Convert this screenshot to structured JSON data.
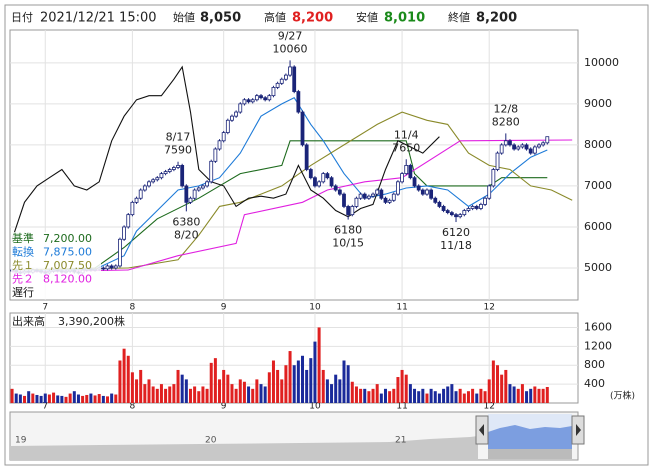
{
  "header": {
    "date_label": "日付",
    "date": "2021/12/21 15:00",
    "open_label": "始値",
    "open": "8,050",
    "high_label": "高値",
    "high": "8,200",
    "low_label": "安値",
    "low": "8,010",
    "close_label": "終値",
    "close": "8,200"
  },
  "chart_data": {
    "type": "candlestick",
    "up_color": "#ffffff",
    "down_color": "#1a2478",
    "edge_color": "#1a2478",
    "xlim": [
      -0.5,
      136.4
    ],
    "ylim": [
      4220,
      10800
    ],
    "yticks": [
      5000,
      6000,
      7000,
      8000,
      9000,
      10000
    ],
    "grid": true,
    "xticks": [
      {
        "value": 8,
        "label": "7"
      },
      {
        "value": 29,
        "label": "8"
      },
      {
        "value": 51,
        "label": "9"
      },
      {
        "value": 73,
        "label": "10"
      },
      {
        "value": 94,
        "label": "11"
      },
      {
        "value": 115,
        "label": "12"
      }
    ],
    "ohlc": [
      [
        4950,
        4990,
        4910,
        4950
      ],
      [
        4950,
        4990,
        4860,
        4900
      ],
      [
        4900,
        4940,
        4840,
        4880
      ],
      [
        4880,
        4960,
        4840,
        4920
      ],
      [
        4920,
        4960,
        4860,
        4900
      ],
      [
        4900,
        4990,
        4860,
        4950
      ],
      [
        4950,
        4990,
        4890,
        4930
      ],
      [
        4930,
        4970,
        4860,
        4900
      ],
      [
        4900,
        4940,
        4840,
        4880
      ],
      [
        4880,
        4960,
        4840,
        4920
      ],
      [
        4920,
        4990,
        4880,
        4950
      ],
      [
        4950,
        4990,
        4890,
        4930
      ],
      [
        4930,
        4970,
        4860,
        4900
      ],
      [
        4900,
        4960,
        4860,
        4920
      ],
      [
        4920,
        4990,
        4880,
        4950
      ],
      [
        4950,
        4990,
        4860,
        4900
      ],
      [
        4900,
        4940,
        4840,
        4880
      ],
      [
        4880,
        4990,
        4840,
        4950
      ],
      [
        4950,
        5020,
        4910,
        4980
      ],
      [
        4980,
        5020,
        4910,
        4950
      ],
      [
        4950,
        5010,
        4910,
        4970
      ],
      [
        4970,
        5040,
        4930,
        5000
      ],
      [
        5000,
        5040,
        4940,
        4980
      ],
      [
        4980,
        5090,
        4940,
        5050
      ],
      [
        5050,
        5090,
        4960,
        5000
      ],
      [
        5000,
        5090,
        4960,
        5050
      ],
      [
        5050,
        5740,
        5010,
        5700
      ],
      [
        5700,
        6040,
        5660,
        6000
      ],
      [
        6000,
        6340,
        5960,
        6300
      ],
      [
        6300,
        6640,
        6260,
        6600
      ],
      [
        6600,
        6740,
        6560,
        6700
      ],
      [
        6700,
        6940,
        6660,
        6900
      ],
      [
        6900,
        7040,
        6860,
        7000
      ],
      [
        7000,
        7140,
        6960,
        7100
      ],
      [
        7100,
        7190,
        7060,
        7150
      ],
      [
        7150,
        7240,
        7110,
        7200
      ],
      [
        7200,
        7340,
        7160,
        7300
      ],
      [
        7300,
        7390,
        7260,
        7350
      ],
      [
        7350,
        7440,
        7310,
        7400
      ],
      [
        7400,
        7490,
        7360,
        7450
      ],
      [
        7450,
        7590,
        7410,
        7500
      ],
      [
        7500,
        7540,
        6960,
        7000
      ],
      [
        7000,
        7040,
        6380,
        6600
      ],
      [
        6600,
        6740,
        6560,
        6700
      ],
      [
        6700,
        6940,
        6660,
        6900
      ],
      [
        6900,
        6990,
        6860,
        6950
      ],
      [
        6950,
        7040,
        6910,
        7000
      ],
      [
        7000,
        7140,
        6960,
        7100
      ],
      [
        7100,
        7640,
        7060,
        7600
      ],
      [
        7600,
        7940,
        7560,
        7900
      ],
      [
        7900,
        8140,
        7860,
        8100
      ],
      [
        8100,
        8340,
        8060,
        8300
      ],
      [
        8300,
        8640,
        8260,
        8600
      ],
      [
        8600,
        8740,
        8560,
        8700
      ],
      [
        8700,
        8840,
        8660,
        8800
      ],
      [
        8800,
        9040,
        8760,
        9000
      ],
      [
        9000,
        9140,
        8960,
        9100
      ],
      [
        9100,
        9140,
        9010,
        9050
      ],
      [
        9050,
        9140,
        9010,
        9100
      ],
      [
        9100,
        9240,
        9060,
        9200
      ],
      [
        9200,
        9240,
        9110,
        9150
      ],
      [
        9150,
        9190,
        9060,
        9100
      ],
      [
        9100,
        9240,
        9060,
        9200
      ],
      [
        9200,
        9440,
        9160,
        9400
      ],
      [
        9400,
        9540,
        9360,
        9500
      ],
      [
        9500,
        9640,
        9460,
        9600
      ],
      [
        9600,
        9740,
        9560,
        9700
      ],
      [
        9700,
        10060,
        9660,
        9900
      ],
      [
        9900,
        9940,
        9260,
        9300
      ],
      [
        9300,
        9340,
        8760,
        8800
      ],
      [
        8800,
        8840,
        7960,
        8000
      ],
      [
        8000,
        8040,
        7360,
        7400
      ],
      [
        7400,
        7440,
        7160,
        7200
      ],
      [
        7200,
        7240,
        6960,
        7000
      ],
      [
        7000,
        7140,
        6960,
        7100
      ],
      [
        7100,
        7340,
        7060,
        7300
      ],
      [
        7300,
        7340,
        7160,
        7200
      ],
      [
        7200,
        7240,
        6960,
        7000
      ],
      [
        7000,
        7040,
        6860,
        6900
      ],
      [
        6900,
        6940,
        6760,
        6800
      ],
      [
        6800,
        6840,
        6460,
        6500
      ],
      [
        6500,
        6540,
        6180,
        6300
      ],
      [
        6300,
        6540,
        6260,
        6500
      ],
      [
        6500,
        6740,
        6460,
        6700
      ],
      [
        6700,
        6840,
        6660,
        6800
      ],
      [
        6800,
        6840,
        6660,
        6700
      ],
      [
        6700,
        6790,
        6660,
        6750
      ],
      [
        6750,
        6840,
        6710,
        6800
      ],
      [
        6800,
        6940,
        6760,
        6900
      ],
      [
        6900,
        6940,
        6660,
        6700
      ],
      [
        6700,
        6740,
        6560,
        6600
      ],
      [
        6600,
        6690,
        6560,
        6650
      ],
      [
        6650,
        6840,
        6610,
        6800
      ],
      [
        6800,
        7140,
        6760,
        7100
      ],
      [
        7100,
        7340,
        7060,
        7300
      ],
      [
        7300,
        7650,
        7260,
        7500
      ],
      [
        7500,
        7540,
        7160,
        7200
      ],
      [
        7200,
        7240,
        6960,
        7000
      ],
      [
        7000,
        7040,
        6860,
        6900
      ],
      [
        6900,
        6940,
        6760,
        6800
      ],
      [
        6800,
        6940,
        6760,
        6900
      ],
      [
        6900,
        6940,
        6660,
        6700
      ],
      [
        6700,
        6740,
        6560,
        6600
      ],
      [
        6600,
        6640,
        6460,
        6500
      ],
      [
        6500,
        6540,
        6360,
        6400
      ],
      [
        6400,
        6440,
        6310,
        6350
      ],
      [
        6350,
        6390,
        6260,
        6300
      ],
      [
        6300,
        6340,
        6120,
        6250
      ],
      [
        6250,
        6340,
        6210,
        6300
      ],
      [
        6300,
        6440,
        6260,
        6400
      ],
      [
        6400,
        6490,
        6360,
        6450
      ],
      [
        6450,
        6540,
        6410,
        6500
      ],
      [
        6500,
        6540,
        6410,
        6450
      ],
      [
        6450,
        6590,
        6410,
        6550
      ],
      [
        6550,
        6740,
        6510,
        6700
      ],
      [
        6700,
        7040,
        6660,
        7000
      ],
      [
        7000,
        7440,
        6960,
        7400
      ],
      [
        7400,
        7840,
        7360,
        7800
      ],
      [
        7800,
        8040,
        7760,
        8000
      ],
      [
        8000,
        8280,
        7960,
        8100
      ],
      [
        8100,
        8140,
        7960,
        8000
      ],
      [
        8000,
        8040,
        7860,
        7900
      ],
      [
        7900,
        7990,
        7860,
        7950
      ],
      [
        7950,
        8040,
        7910,
        8000
      ],
      [
        8000,
        8040,
        7860,
        7900
      ],
      [
        7900,
        7940,
        7760,
        7800
      ],
      [
        7800,
        7990,
        7760,
        7950
      ],
      [
        7950,
        8040,
        7910,
        8000
      ],
      [
        8000,
        8090,
        7960,
        8050
      ],
      [
        8050,
        8200,
        8010,
        8200
      ]
    ],
    "lines": [
      {
        "name": "基準",
        "color": "#1e6b1e",
        "legend_value": {
          "value": 7200,
          "label": "7,200.00"
        },
        "x": [
          0,
          20,
          27,
          35,
          45,
          55,
          65,
          67,
          95,
          97,
          100,
          115,
          118,
          129
        ],
        "values": [
          4950,
          5000,
          5500,
          6200,
          6700,
          7300,
          7500,
          8100,
          8100,
          7300,
          7000,
          7000,
          7200,
          7200
        ]
      },
      {
        "name": "転換",
        "color": "#1e7bd8",
        "legend_value": {
          "value": 7875,
          "label": "7,875.00"
        },
        "x": [
          0,
          10,
          20,
          27,
          30,
          35,
          40,
          45,
          50,
          55,
          60,
          65,
          68,
          72,
          75,
          80,
          85,
          90,
          95,
          100,
          105,
          110,
          115,
          120,
          125,
          129
        ],
        "values": [
          4950,
          4950,
          4970,
          5300,
          5900,
          6400,
          6900,
          7000,
          7200,
          7800,
          8700,
          9000,
          9150,
          8500,
          8100,
          7300,
          6700,
          6800,
          6950,
          7000,
          6900,
          6500,
          6800,
          7300,
          7700,
          7875
        ]
      },
      {
        "name": "先１",
        "color": "#8a8a2a",
        "legend_value": {
          "value": 7007.5,
          "label": "7,007.50"
        },
        "x": [
          0,
          28,
          40,
          45,
          50,
          55,
          60,
          65,
          72,
          80,
          88,
          94,
          100,
          105,
          110,
          115,
          120,
          125,
          130,
          135
        ],
        "values": [
          4950,
          5000,
          5200,
          5800,
          6500,
          6600,
          6800,
          7000,
          7500,
          8000,
          8500,
          8800,
          8600,
          8500,
          7800,
          7500,
          7400,
          7000,
          6900,
          6650
        ]
      },
      {
        "name": "先２",
        "color": "#e020e0",
        "legend_value": {
          "value": 8120,
          "label": "8,120.00"
        },
        "x": [
          0,
          28,
          40,
          54,
          56,
          70,
          76,
          85,
          94,
          108,
          135
        ],
        "values": [
          4900,
          4950,
          5300,
          5600,
          6300,
          6600,
          6900,
          7100,
          7200,
          8100,
          8120
        ]
      },
      {
        "name": "遅行",
        "color": "#111111",
        "x": [
          0,
          3,
          6,
          9,
          12,
          15,
          18,
          21,
          24,
          27,
          30,
          33,
          36,
          39,
          41,
          43,
          45,
          48,
          51,
          54,
          57,
          60,
          63,
          66,
          69,
          72,
          75,
          78,
          81,
          84,
          87,
          90,
          93,
          96,
          99,
          103
        ],
        "values": [
          5700,
          6600,
          7000,
          7200,
          7400,
          7000,
          6900,
          7100,
          8100,
          8700,
          9100,
          9200,
          9200,
          9600,
          9900,
          8800,
          7400,
          7100,
          7000,
          6500,
          6700,
          6750,
          6700,
          6800,
          7500,
          6900,
          6700,
          6400,
          6250,
          6450,
          6550,
          7400,
          8100,
          7950,
          7800,
          8200
        ]
      }
    ],
    "annotations": [
      {
        "date": "9/27",
        "price": 10060
      },
      {
        "date": "8/17",
        "price": 7590
      },
      {
        "date": "8/20",
        "price": 6380
      },
      {
        "date": "10/15",
        "price": 6180
      },
      {
        "date": "11/4",
        "price": 7650
      },
      {
        "date": "11/18",
        "price": 6120
      },
      {
        "date": "12/8",
        "price": 8280
      }
    ],
    "volume": {
      "title": "出来高",
      "last": {
        "value": 339.02,
        "label": "3,390,200株"
      },
      "unit": "(万株)",
      "up_color": "#e02020",
      "down_color": "#1a2a9a",
      "ylim": [
        0,
        1906
      ],
      "yticks": [
        400,
        800,
        1200,
        1600
      ],
      "values": [
        300,
        200,
        180,
        150,
        250,
        200,
        170,
        150,
        200,
        180,
        220,
        160,
        150,
        130,
        200,
        250,
        180,
        150,
        170,
        200,
        160,
        190,
        150,
        140,
        200,
        180,
        900,
        1150,
        1000,
        650,
        500,
        700,
        400,
        500,
        350,
        300,
        400,
        300,
        350,
        400,
        700,
        600,
        500,
        300,
        350,
        250,
        350,
        300,
        850,
        950,
        500,
        700,
        600,
        400,
        300,
        500,
        450,
        350,
        300,
        500,
        400,
        350,
        650,
        900,
        700,
        500,
        800,
        1100,
        800,
        900,
        1000,
        700,
        950,
        1300,
        1600,
        700,
        500,
        400,
        600,
        500,
        900,
        800,
        450,
        350,
        300,
        300,
        250,
        300,
        400,
        200,
        300,
        250,
        300,
        550,
        700,
        600,
        400,
        300,
        250,
        300,
        200,
        300,
        250,
        200,
        300,
        350,
        400,
        250,
        300,
        200,
        250,
        300,
        200,
        300,
        250,
        500,
        900,
        800,
        600,
        700,
        400,
        350,
        300,
        400,
        250,
        300,
        350,
        300,
        300,
        339.02
      ]
    }
  },
  "navigator": {
    "labels": [
      "19",
      "20",
      "21"
    ]
  }
}
